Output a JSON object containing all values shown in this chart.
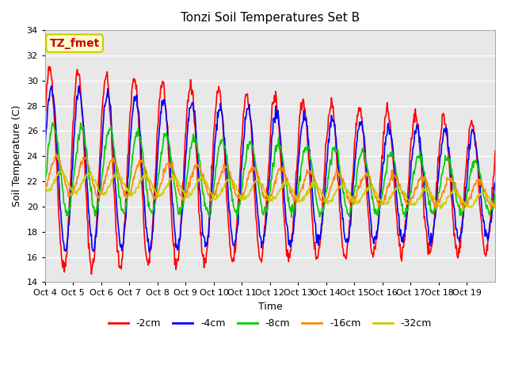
{
  "title": "Tonzi Soil Temperatures Set B",
  "xlabel": "Time",
  "ylabel": "Soil Temperature (C)",
  "ylim": [
    14,
    34
  ],
  "yticks": [
    14,
    16,
    18,
    20,
    22,
    24,
    26,
    28,
    30,
    32,
    34
  ],
  "x_labels": [
    "Oct 4",
    "Oct 5",
    "Oct 6",
    "Oct 7",
    "Oct 8",
    "Oct 9",
    "Oct 10",
    "Oct 11",
    "Oct 12",
    "Oct 13",
    "Oct 14",
    "Oct 15",
    "Oct 16",
    "Oct 17",
    "Oct 18",
    "Oct 19"
  ],
  "annotation_text": "TZ_fmet",
  "annotation_bg": "#ffffcc",
  "annotation_border": "#cccc00",
  "annotation_text_color": "#cc0000",
  "colors": {
    "-2cm": "#ff0000",
    "-4cm": "#0000ff",
    "-8cm": "#00cc00",
    "-16cm": "#ff8800",
    "-32cm": "#cccc00"
  },
  "bg_color": "#e8e8e8",
  "grid_color": "#ffffff",
  "linewidth": 1.2
}
